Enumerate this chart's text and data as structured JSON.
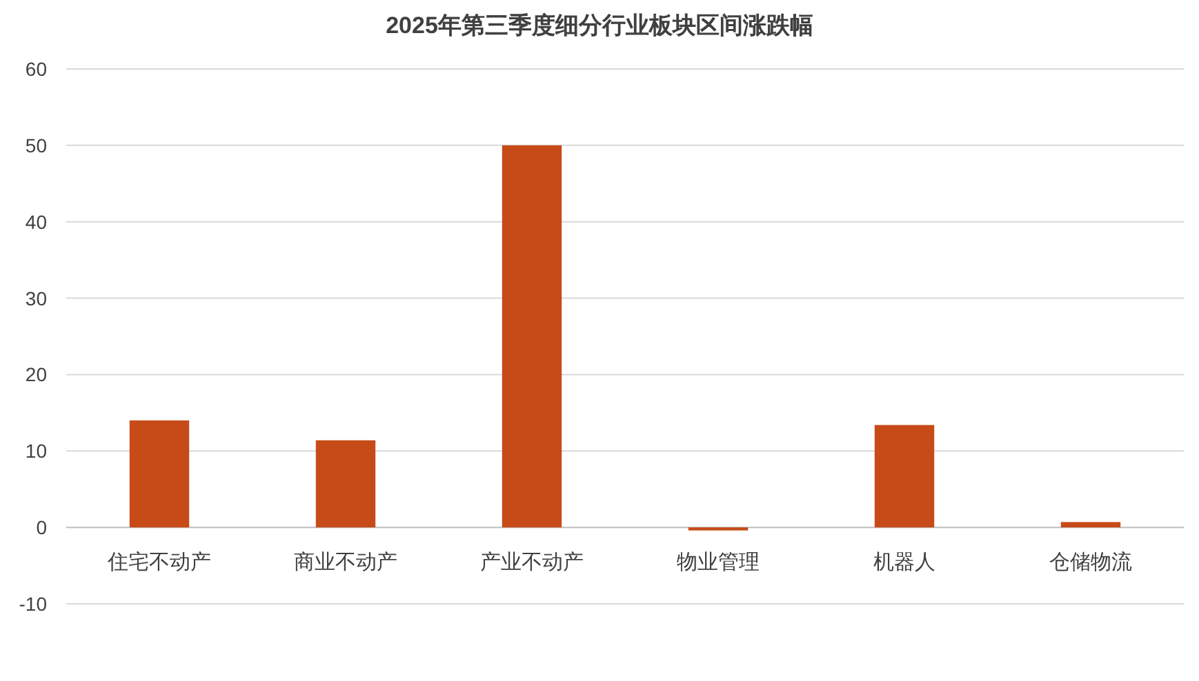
{
  "chart_data": {
    "type": "bar",
    "title": "2025年第三季度细分行业板块区间涨跌幅",
    "categories": [
      "住宅不动产",
      "商业不动产",
      "产业不动产",
      "物业管理",
      "机器人",
      "仓储物流"
    ],
    "values": [
      14,
      11.4,
      50,
      -0.4,
      13.4,
      0.7
    ],
    "color": "#c64b18",
    "ylim": [
      -10,
      60
    ],
    "yticks": [
      -10,
      0,
      10,
      20,
      30,
      40,
      50,
      60
    ],
    "grid": "y"
  }
}
